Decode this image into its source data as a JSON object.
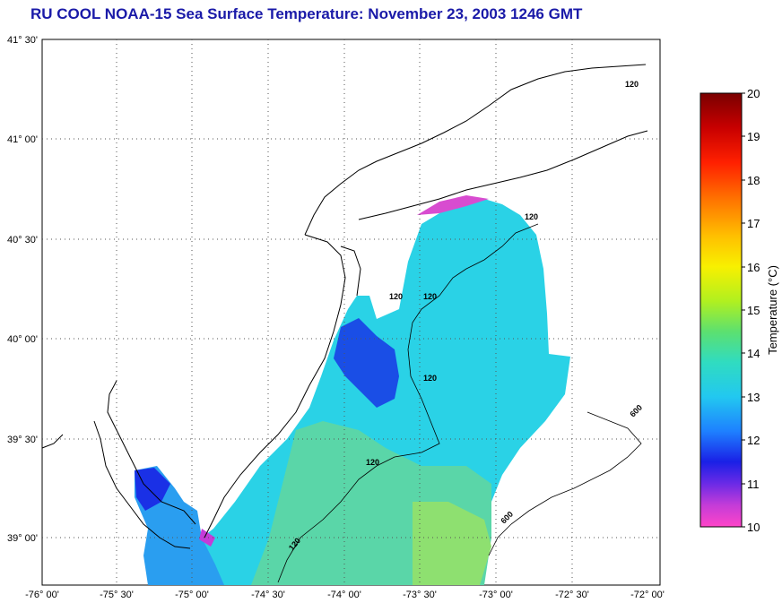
{
  "title": "RU COOL  NOAA-15  Sea Surface Temperature:  November 23, 2003 1246 GMT",
  "map": {
    "lon_labels": [
      "-76° 00'",
      "-75° 30'",
      "-75° 00'",
      "-74° 30'",
      "-74° 00'",
      "-73° 30'",
      "-73° 00'",
      "-72° 30'",
      "-72° 00'"
    ],
    "lat_labels": [
      "41° 30'",
      "41° 00'",
      "40° 30'",
      "40° 00'",
      "39° 30'",
      "39° 00'"
    ],
    "contour_labels": [
      "120",
      "120",
      "120",
      "120",
      "120",
      "120",
      "120",
      "600",
      "600"
    ]
  },
  "colorbar": {
    "label": "Temperature (°C)",
    "ticks": [
      "20",
      "19",
      "18",
      "17",
      "16",
      "15",
      "14",
      "13",
      "12",
      "11",
      "10"
    ],
    "colors": [
      "#7a0000",
      "#b40000",
      "#ff1a00",
      "#ff6a00",
      "#ffaa00",
      "#ffd800",
      "#f2f200",
      "#b8f000",
      "#6ee05a",
      "#40d8a0",
      "#26d8d8",
      "#20b4f0",
      "#1e64ff",
      "#1a1ae6",
      "#8a2ae6",
      "#ff3cc8"
    ]
  }
}
